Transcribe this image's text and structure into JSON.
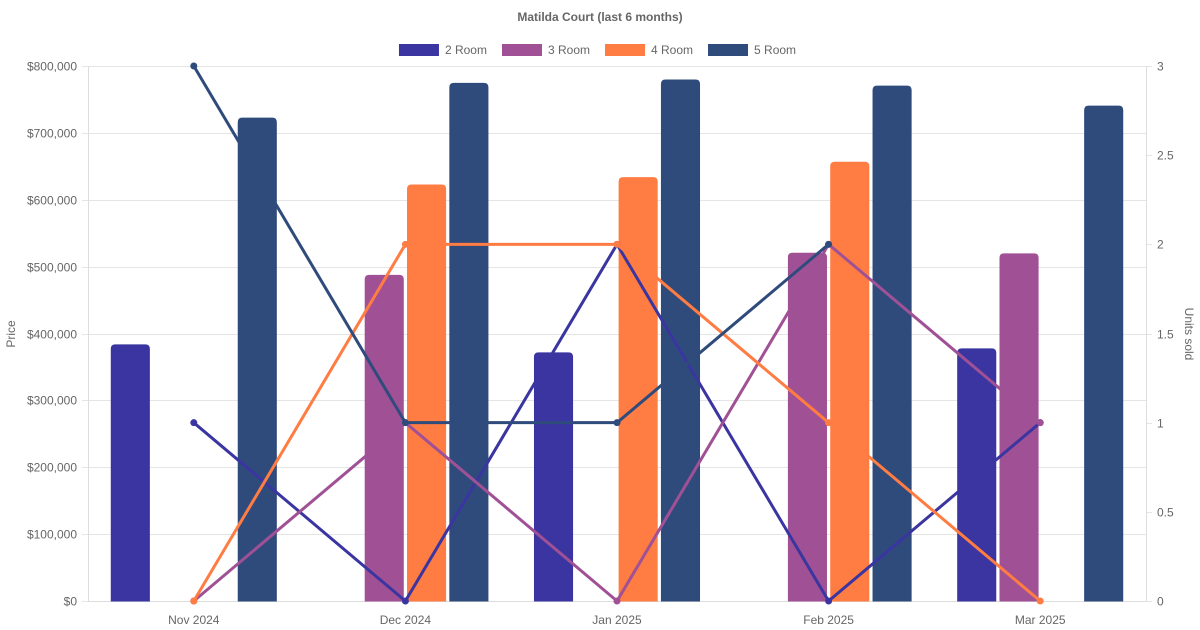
{
  "chart_data": {
    "type": "bar",
    "title": "Matilda Court (last 6 months)",
    "xlabel": "",
    "ylabel": "Price",
    "y2label": "Units sold",
    "categories": [
      "Nov 2024",
      "Dec 2024",
      "Jan 2025",
      "Feb 2025",
      "Mar 2025"
    ],
    "ylim": [
      0,
      800000
    ],
    "y2lim": [
      0,
      3
    ],
    "yticks": [
      "$0",
      "$100,000",
      "$200,000",
      "$300,000",
      "$400,000",
      "$500,000",
      "$600,000",
      "$700,000",
      "$800,000"
    ],
    "ytick_values": [
      0,
      100000,
      200000,
      300000,
      400000,
      500000,
      600000,
      700000,
      800000
    ],
    "y2ticks": [
      "0",
      "0.5",
      "1",
      "1.5",
      "2",
      "2.5",
      "3"
    ],
    "y2tick_values": [
      0,
      0.5,
      1,
      1.5,
      2,
      2.5,
      3
    ],
    "grid": true,
    "legend_position": "top",
    "series": [
      {
        "name": "2 Room",
        "color": "#3a35a0",
        "price": [
          383000,
          null,
          371000,
          null,
          377000
        ],
        "units_sold": [
          1,
          0,
          2,
          0,
          1
        ]
      },
      {
        "name": "3 Room",
        "color": "#a05195",
        "price": [
          null,
          487000,
          null,
          520000,
          519000
        ],
        "units_sold": [
          0,
          1,
          0,
          2,
          1
        ]
      },
      {
        "name": "4 Room",
        "color": "#ff7c43",
        "price": [
          null,
          622000,
          633000,
          656000,
          null
        ],
        "units_sold": [
          0,
          2,
          2,
          1,
          0
        ]
      },
      {
        "name": "5 Room",
        "color": "#2f4b7c",
        "price": [
          722000,
          774000,
          779000,
          770000,
          740000
        ],
        "units_sold": [
          3,
          1,
          1,
          2,
          null
        ]
      }
    ]
  }
}
